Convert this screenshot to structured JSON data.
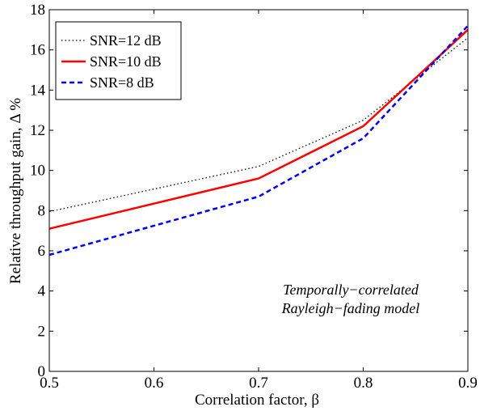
{
  "chart_data": {
    "type": "line",
    "title": "",
    "xlabel": "Correlation factor, β",
    "ylabel": "Relative throughput gain,  Δ %",
    "xlim": [
      0.5,
      0.9
    ],
    "ylim": [
      0,
      18
    ],
    "xticks": [
      0.5,
      0.6,
      0.7,
      0.8,
      0.9
    ],
    "yticks": [
      0,
      2,
      4,
      6,
      8,
      10,
      12,
      14,
      16,
      18
    ],
    "xtick_labels": [
      "0.5",
      "0.6",
      "0.7",
      "0.8",
      "0.9"
    ],
    "ytick_labels": [
      "0",
      "2",
      "4",
      "6",
      "8",
      "10",
      "12",
      "14",
      "16",
      "18"
    ],
    "grid": false,
    "legend_position": "top-left",
    "annotation": [
      "Temporally−correlated",
      "Rayleigh−fading model"
    ],
    "series": [
      {
        "name": "SNR=12 dB",
        "color": "#000000",
        "style": "dotted",
        "x": [
          0.5,
          0.7,
          0.8,
          0.9
        ],
        "y": [
          7.95,
          10.2,
          12.5,
          16.6
        ]
      },
      {
        "name": "SNR=10 dB",
        "color": "#ff0000",
        "style": "solid",
        "x": [
          0.5,
          0.7,
          0.8,
          0.9
        ],
        "y": [
          7.1,
          9.6,
          12.2,
          17.0
        ]
      },
      {
        "name": "SNR=8 dB",
        "color": "#0000ff",
        "style": "dashed",
        "x": [
          0.5,
          0.7,
          0.8,
          0.9
        ],
        "y": [
          5.8,
          8.7,
          11.6,
          17.2
        ]
      }
    ]
  }
}
